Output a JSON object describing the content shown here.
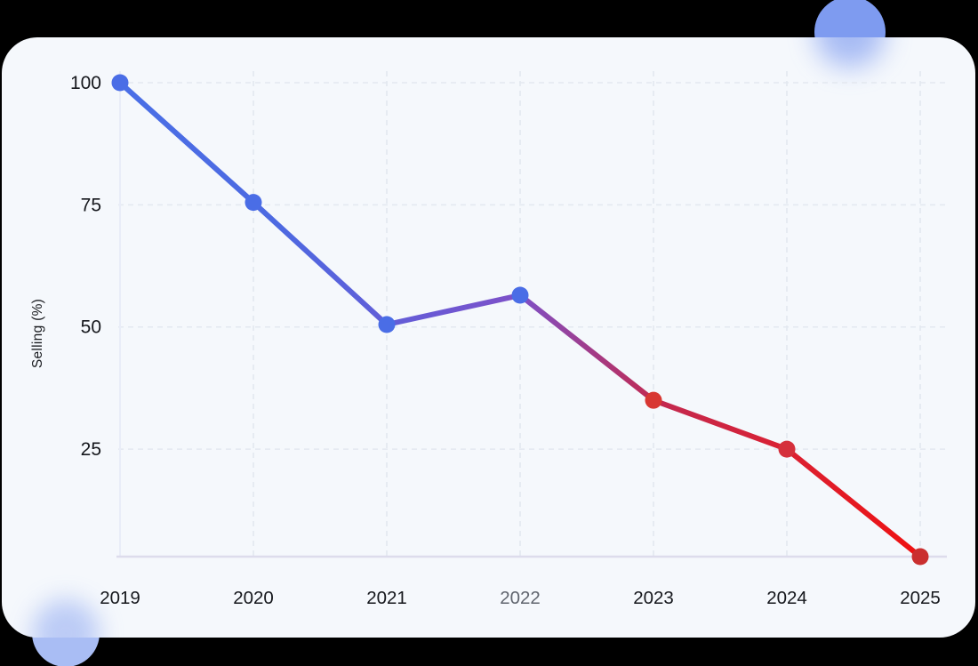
{
  "decor": {
    "circle_top_right_color": "#7e9bf0",
    "circle_bottom_left_color": "#a9bdf4"
  },
  "card": {
    "background": "#f5f8fc"
  },
  "chart_data": {
    "type": "line",
    "title": "",
    "categories": [
      "2019",
      "2020",
      "2021",
      "2022",
      "2023",
      "2024",
      "2025"
    ],
    "values": [
      100,
      75.5,
      50.5,
      56.5,
      35,
      25,
      3
    ],
    "xlabel": "",
    "ylabel": "Selling (%)",
    "yticks": [
      100,
      75,
      50,
      25
    ],
    "ylim": [
      3,
      100
    ],
    "grid": "dashed",
    "legend": "none",
    "line_width": 6,
    "point_radius": 9.5,
    "line_gradient": [
      {
        "offset": 0,
        "color": "#4a6fe6"
      },
      {
        "offset": 0.2,
        "color": "#4d69e1"
      },
      {
        "offset": 0.4,
        "color": "#6c58d3"
      },
      {
        "offset": 0.5,
        "color": "#7e50c7"
      },
      {
        "offset": 0.67,
        "color": "#c22950"
      },
      {
        "offset": 0.83,
        "color": "#da2133"
      },
      {
        "offset": 1,
        "color": "#ef1111"
      }
    ],
    "point_colors": [
      "#4a6de6",
      "#4a6de6",
      "#4a6de6",
      "#4a6de6",
      "#d83732",
      "#d5303c",
      "#ca2f2f"
    ],
    "colors": {
      "grid_line": "#e3e8f0",
      "axis_line_bottom": "#dddcec",
      "axis_line_left": "#e9edf8",
      "tick_label": "#15171c",
      "muted_tick_label": "#60656e"
    },
    "muted_x_label": "2022"
  }
}
